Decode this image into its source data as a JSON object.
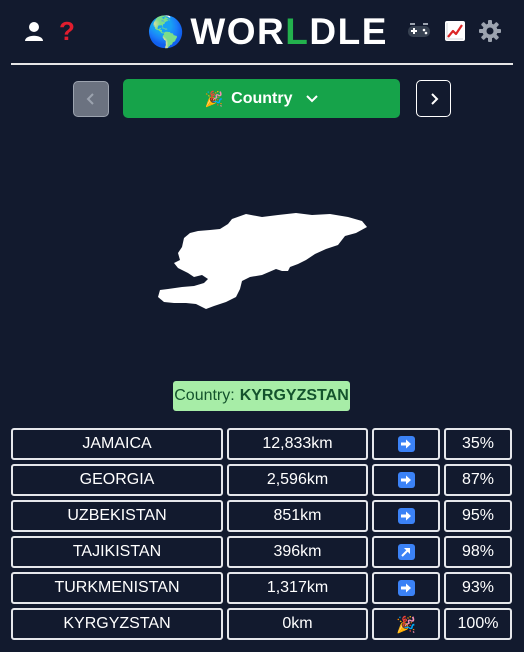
{
  "header": {
    "logo_prefix": "WOR",
    "logo_letter": "L",
    "logo_suffix": "DLE",
    "globe": "🌎",
    "icons": [
      "user-icon",
      "help-icon",
      "games-icon",
      "stats-icon",
      "settings-icon"
    ]
  },
  "mode": {
    "emoji": "🎉",
    "label": "Country",
    "prev_icon": "chevron-left-icon",
    "next_icon": "chevron-right-icon",
    "dropdown_icon": "chevron-down-icon"
  },
  "answer": {
    "prefix": "Country:",
    "value": "KYRGYZSTAN"
  },
  "guesses": [
    {
      "country": "JAMAICA",
      "distance": "12,833km",
      "direction": "right-arrow",
      "proximity": "35%"
    },
    {
      "country": "GEORGIA",
      "distance": "2,596km",
      "direction": "right-arrow",
      "proximity": "87%"
    },
    {
      "country": "UZBEKISTAN",
      "distance": "851km",
      "direction": "right-arrow",
      "proximity": "95%"
    },
    {
      "country": "TAJIKISTAN",
      "distance": "396km",
      "direction": "up-right-arrow",
      "proximity": "98%"
    },
    {
      "country": "TURKMENISTAN",
      "distance": "1,317km",
      "direction": "right-arrow",
      "proximity": "93%"
    },
    {
      "country": "KYRGYZSTAN",
      "distance": "0km",
      "direction": "party-popper",
      "proximity": "100%",
      "emoji": "🎉"
    }
  ],
  "colors": {
    "background": "#121a2e",
    "accent_green": "#16a34a",
    "answer_bg": "#a7eda7",
    "arrow_blue": "#3b82f6"
  }
}
